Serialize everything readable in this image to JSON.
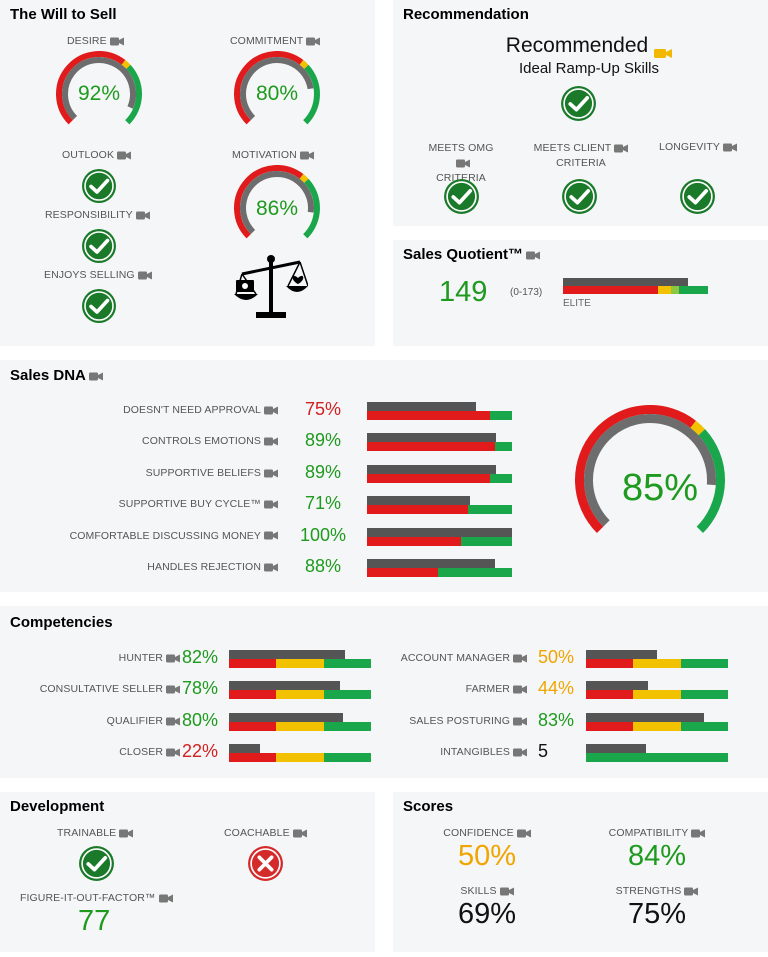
{
  "will_to_sell": {
    "title": "The Will to Sell",
    "desire": {
      "label": "DESIRE",
      "value": "92%",
      "level": 0.92
    },
    "commitment": {
      "label": "COMMITMENT",
      "value": "80%",
      "level": 0.8
    },
    "outlook": {
      "label": "OUTLOOK"
    },
    "motivation": {
      "label": "MOTIVATION",
      "value": "86%",
      "level": 0.86
    },
    "responsibility": {
      "label": "RESPONSIBILITY"
    },
    "enjoys_selling": {
      "label": "ENJOYS SELLING"
    }
  },
  "recommendation": {
    "title": "Recommendation",
    "headline": "Recommended",
    "subhead": "Ideal Ramp-Up Skills",
    "criteria": [
      {
        "label_line1": "MEETS OMG",
        "label_line2": "CRITERIA"
      },
      {
        "label_line1": "MEETS CLIENT",
        "label_line2": "CRITERIA"
      },
      {
        "label_line1": "LONGEVITY",
        "label_line2": ""
      }
    ]
  },
  "sales_quotient": {
    "title": "Sales Quotient™",
    "value": "149",
    "range": "(0-173)",
    "tier": "ELITE",
    "level": 0.86
  },
  "sales_dna": {
    "title": "Sales DNA",
    "overall": "85%",
    "overall_level": 0.85,
    "rows": [
      {
        "label": "DOESN'T NEED APPROVAL",
        "value": "75%",
        "color": "#d32020",
        "level": 0.75
      },
      {
        "label": "CONTROLS EMOTIONS",
        "value": "89%",
        "color": "#1e9a1e",
        "level": 0.89
      },
      {
        "label": "SUPPORTIVE BELIEFS",
        "value": "89%",
        "color": "#1e9a1e",
        "level": 0.89
      },
      {
        "label": "SUPPORTIVE BUY CYCLE™",
        "value": "71%",
        "color": "#1e9a1e",
        "level": 0.71
      },
      {
        "label": "COMFORTABLE DISCUSSING MONEY",
        "value": "100%",
        "color": "#1e9a1e",
        "level": 1.0
      },
      {
        "label": "HANDLES REJECTION",
        "value": "88%",
        "color": "#1e9a1e",
        "level": 0.88
      }
    ]
  },
  "competencies": {
    "title": "Competencies",
    "left": [
      {
        "label": "HUNTER",
        "value": "82%",
        "color": "#1e9a1e",
        "level": 0.82
      },
      {
        "label": "CONSULTATIVE SELLER",
        "value": "78%",
        "color": "#1e9a1e",
        "level": 0.78
      },
      {
        "label": "QUALIFIER",
        "value": "80%",
        "color": "#1e9a1e",
        "level": 0.8
      },
      {
        "label": "CLOSER",
        "value": "22%",
        "color": "#d32020",
        "level": 0.22
      }
    ],
    "right": [
      {
        "label": "ACCOUNT MANAGER",
        "value": "50%",
        "color": "#f0a500",
        "level": 0.5
      },
      {
        "label": "FARMER",
        "value": "44%",
        "color": "#f0a500",
        "level": 0.44
      },
      {
        "label": "SALES POSTURING",
        "value": "83%",
        "color": "#1e9a1e",
        "level": 0.83
      },
      {
        "label": "INTANGIBLES",
        "value": "5",
        "color": "#111111",
        "level": 0.42
      }
    ]
  },
  "development": {
    "title": "Development",
    "trainable": {
      "label": "TRAINABLE"
    },
    "coachable": {
      "label": "COACHABLE"
    },
    "fiof": {
      "label": "FIGURE-IT-OUT-FACTOR™",
      "value": "77"
    }
  },
  "scores": {
    "title": "Scores",
    "confidence": {
      "label": "CONFIDENCE",
      "value": "50%",
      "color": "#f0a500"
    },
    "compatibility": {
      "label": "COMPATIBILITY",
      "value": "84%",
      "color": "#1e9a1e"
    },
    "skills": {
      "label": "SKILLS",
      "value": "69%",
      "color": "#111111"
    },
    "strengths": {
      "label": "STRENGTHS",
      "value": "75%",
      "color": "#111111"
    }
  },
  "colors": {
    "green": "#1e9a1e",
    "bar_green": "#1aa64a",
    "red": "#e11b1b",
    "yellow": "#f2c200",
    "gray": "#555555",
    "camera": "#777777",
    "camera_gold": "#f2b800"
  }
}
